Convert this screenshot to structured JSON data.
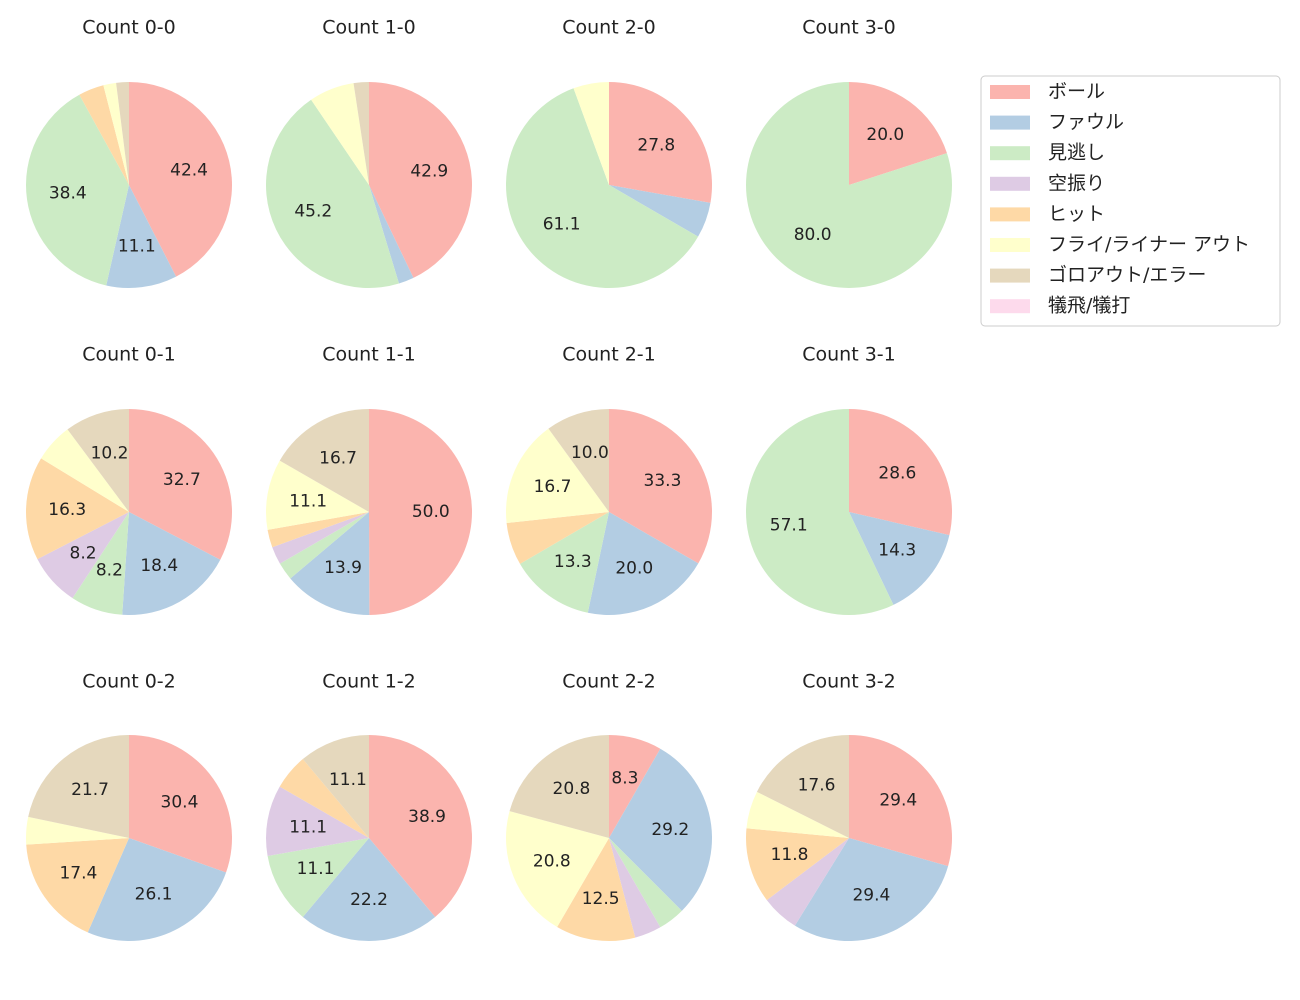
{
  "legend": {
    "categories": [
      "ボール",
      "ファウル",
      "見逃し",
      "空振り",
      "ヒット",
      "フライ/ライナー アウト",
      "ゴロアウト/エラー",
      "犠飛/犠打"
    ],
    "colors": [
      "#fbb4ae",
      "#b3cde3",
      "#ccebc5",
      "#decbe4",
      "#fed9a6",
      "#ffffcc",
      "#e5d8bd",
      "#fddaec"
    ]
  },
  "chart_data": [
    {
      "type": "pie",
      "title": "Count 0-0",
      "values": [
        42.4,
        11.1,
        38.4,
        0,
        4.0,
        2.0,
        2.0,
        0
      ],
      "value_labels": [
        "42.4",
        "11.1",
        "38.4",
        null,
        null,
        null,
        null,
        null
      ]
    },
    {
      "type": "pie",
      "title": "Count 1-0",
      "values": [
        42.9,
        2.4,
        45.2,
        0,
        0,
        7.1,
        2.4,
        0
      ],
      "value_labels": [
        "42.9",
        null,
        "45.2",
        null,
        null,
        null,
        null,
        null
      ]
    },
    {
      "type": "pie",
      "title": "Count 2-0",
      "values": [
        27.8,
        5.6,
        61.1,
        0,
        0,
        5.6,
        0,
        0
      ],
      "value_labels": [
        "27.8",
        null,
        "61.1",
        null,
        null,
        null,
        null,
        null
      ]
    },
    {
      "type": "pie",
      "title": "Count 3-0",
      "values": [
        20,
        0,
        80,
        0,
        0,
        0,
        0,
        0
      ],
      "value_labels": [
        "20.0",
        null,
        "80.0",
        null,
        null,
        null,
        null,
        null
      ]
    },
    {
      "type": "pie",
      "title": "Count 0-1",
      "values": [
        32.7,
        18.4,
        8.2,
        8.2,
        16.3,
        6.1,
        10.2,
        0
      ],
      "value_labels": [
        "32.7",
        "18.4",
        "8.2",
        "8.2",
        "16.3",
        null,
        "10.2",
        null
      ]
    },
    {
      "type": "pie",
      "title": "Count 1-1",
      "values": [
        50,
        13.9,
        2.8,
        2.8,
        2.8,
        11.1,
        16.7,
        0
      ],
      "value_labels": [
        "50.0",
        "13.9",
        null,
        null,
        null,
        "11.1",
        "16.7",
        null
      ]
    },
    {
      "type": "pie",
      "title": "Count 2-1",
      "values": [
        33.3,
        20,
        13.3,
        0,
        6.7,
        16.7,
        10,
        0
      ],
      "value_labels": [
        "33.3",
        "20.0",
        "13.3",
        null,
        null,
        "16.7",
        "10.0",
        null
      ]
    },
    {
      "type": "pie",
      "title": "Count 3-1",
      "values": [
        28.6,
        14.3,
        57.1,
        0,
        0,
        0,
        0,
        0
      ],
      "value_labels": [
        "28.6",
        "14.3",
        "57.1",
        null,
        null,
        null,
        null,
        null
      ]
    },
    {
      "type": "pie",
      "title": "Count 0-2",
      "values": [
        30.4,
        26.1,
        0,
        0,
        17.4,
        4.3,
        21.7,
        0
      ],
      "value_labels": [
        "30.4",
        "26.1",
        null,
        null,
        "17.4",
        null,
        "21.7",
        null
      ]
    },
    {
      "type": "pie",
      "title": "Count 1-2",
      "values": [
        38.9,
        22.2,
        11.1,
        11.1,
        5.6,
        0,
        11.1,
        0
      ],
      "value_labels": [
        "38.9",
        "22.2",
        "11.1",
        "11.1",
        null,
        null,
        "11.1",
        null
      ]
    },
    {
      "type": "pie",
      "title": "Count 2-2",
      "values": [
        8.3,
        29.2,
        4.2,
        4.2,
        12.5,
        20.8,
        20.8,
        0
      ],
      "value_labels": [
        "8.3",
        "29.2",
        null,
        null,
        "12.5",
        "20.8",
        "20.8",
        null
      ]
    },
    {
      "type": "pie",
      "title": "Count 3-2",
      "values": [
        29.4,
        29.4,
        0,
        5.9,
        11.8,
        5.9,
        17.6,
        0
      ],
      "value_labels": [
        "29.4",
        "29.4",
        null,
        null,
        "11.8",
        null,
        "17.6",
        null
      ]
    }
  ]
}
